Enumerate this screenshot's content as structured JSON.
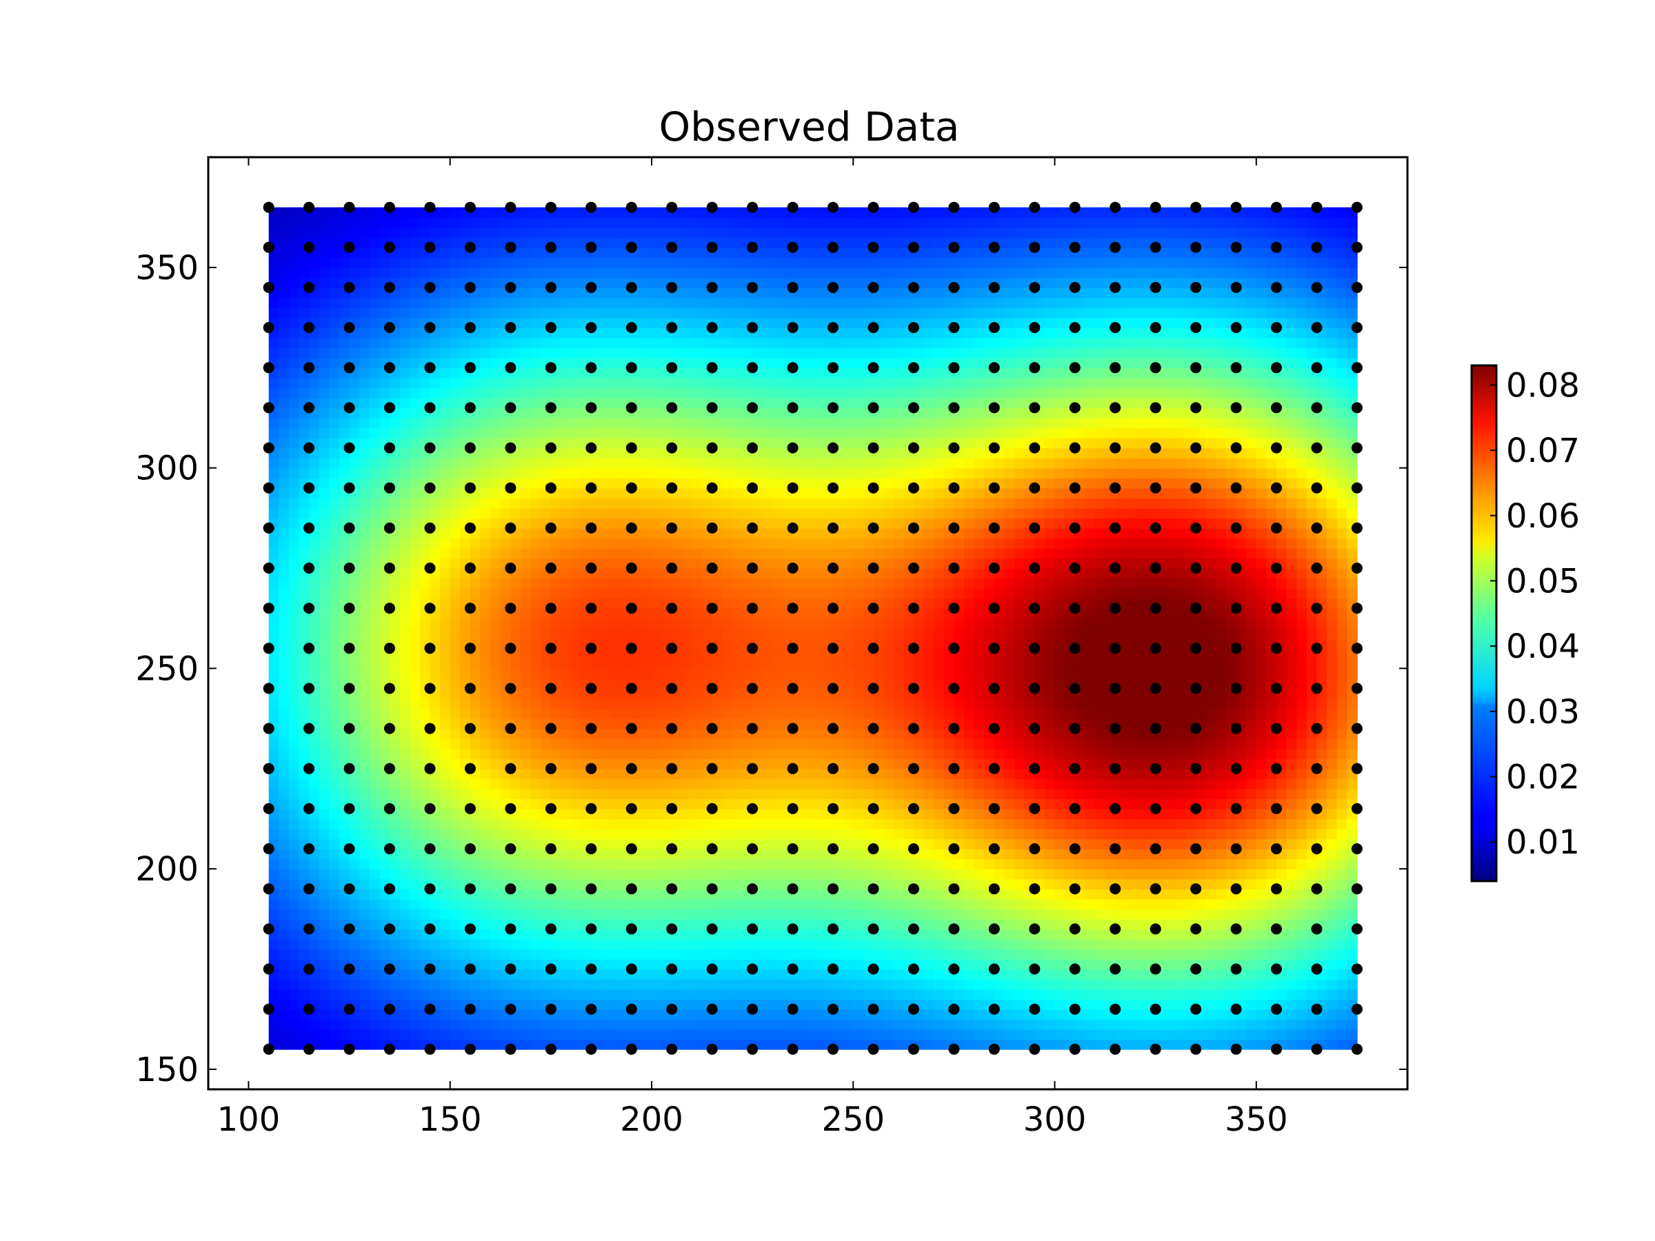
{
  "chart_data": {
    "type": "heatmap",
    "title": "Observed Data",
    "xlabel": "",
    "ylabel": "",
    "xlim": [
      90,
      387.5
    ],
    "ylim": [
      145,
      377.5
    ],
    "x_ticks": [
      "100",
      "150",
      "200",
      "250",
      "300",
      "350"
    ],
    "y_ticks": [
      "150",
      "200",
      "250",
      "300",
      "350"
    ],
    "grid_x": {
      "start": 105,
      "stop": 375,
      "step": 10
    },
    "grid_y": {
      "start": 155,
      "stop": 365,
      "step": 10
    },
    "peaks": [
      {
        "x": 180,
        "y": 255,
        "value": 0.065
      },
      {
        "x": 330,
        "y": 250,
        "value": 0.083
      }
    ],
    "value_range": [
      0.004,
      0.083
    ],
    "colormap": "jet",
    "colorbar": {
      "ticks": [
        "0.01",
        "0.02",
        "0.03",
        "0.04",
        "0.05",
        "0.06",
        "0.07",
        "0.08"
      ],
      "min": 0.004,
      "max": 0.083
    },
    "points_marker_color": "#000000",
    "grid": false
  }
}
